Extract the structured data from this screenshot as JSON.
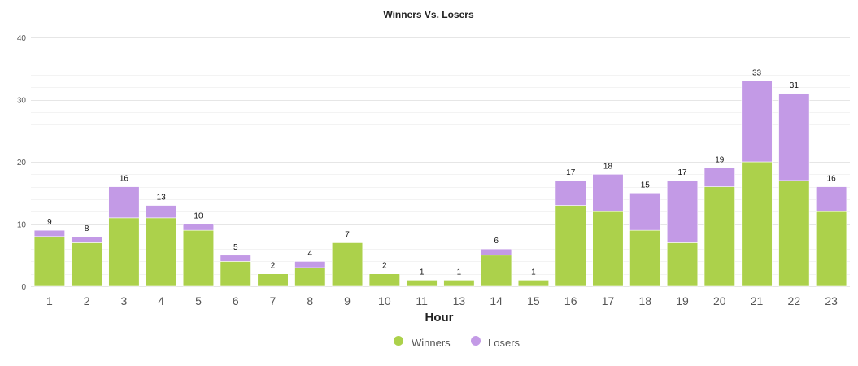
{
  "chart_data": {
    "type": "bar",
    "stacked": true,
    "title": "Winners Vs. Losers",
    "xlabel": "Hour",
    "ylabel": "",
    "ylim": [
      0,
      40
    ],
    "yticks": [
      0,
      10,
      20,
      30,
      40
    ],
    "grid": true,
    "legend_position": "bottom-center",
    "categories": [
      "1",
      "2",
      "3",
      "4",
      "5",
      "6",
      "7",
      "8",
      "9",
      "10",
      "11",
      "13",
      "14",
      "15",
      "16",
      "17",
      "18",
      "19",
      "20",
      "21",
      "22",
      "23"
    ],
    "totals": [
      "9",
      "8",
      "16",
      "13",
      "10",
      "5",
      "2",
      "4",
      "7",
      "2",
      "1",
      "1",
      "6",
      "1",
      "17",
      "18",
      "15",
      "17",
      "19",
      "33",
      "31",
      "16"
    ],
    "series": [
      {
        "name": "Winners",
        "color": "#acd14b",
        "values": [
          8,
          7,
          11,
          11,
          9,
          4,
          2,
          3,
          7,
          2,
          1,
          1,
          5,
          1,
          13,
          12,
          9,
          7,
          16,
          20,
          17,
          12
        ]
      },
      {
        "name": "Losers",
        "color": "#c39ae6",
        "values": [
          1,
          1,
          5,
          2,
          1,
          1,
          0,
          1,
          0,
          0,
          0,
          0,
          1,
          0,
          4,
          6,
          6,
          10,
          3,
          13,
          14,
          4
        ]
      }
    ]
  }
}
